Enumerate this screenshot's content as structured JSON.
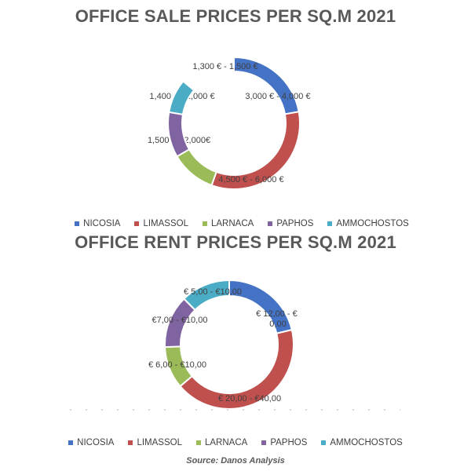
{
  "colors": {
    "NICOSIA": "#4472C4",
    "LIMASSOL": "#C0504D",
    "LARNACA": "#9BBB59",
    "PAPHOS": "#8064A2",
    "AMMOCHOSTOS": "#4BACC6"
  },
  "legend": [
    "NICOSIA",
    "LIMASSOL",
    "LARNACA",
    "PAPHOS",
    "AMMOCHOSTOS"
  ],
  "source": "Source: Danos Analysis",
  "chart_data": [
    {
      "type": "pie",
      "style": "donut",
      "title": "OFFICE SALE PRICES PER SQ.M 2021",
      "series": [
        {
          "name": "NICOSIA",
          "label": "3,000 € - 4,000 €",
          "share": 0.222
        },
        {
          "name": "LIMASSOL",
          "label": "4,500 € - 6,000 €",
          "share": 0.333
        },
        {
          "name": "LARNACA",
          "label": "1,500 € - 2,000€",
          "share": 0.111
        },
        {
          "name": "PAPHOS",
          "label": "1,400 € - 2,000 €",
          "share": 0.111
        },
        {
          "name": "AMMOCHOSTOS",
          "label": "1,300 € - 1,500 €",
          "share": 0.083
        }
      ],
      "legend_position": "bottom"
    },
    {
      "type": "pie",
      "style": "donut",
      "title": "OFFICE RENT PRICES PER SQ.M 2021",
      "series": [
        {
          "name": "NICOSIA",
          "label": "€ 12,00 - € 20,00",
          "share": 0.213
        },
        {
          "name": "LIMASSOL",
          "label": "€ 20,00 - €40,00",
          "share": 0.425
        },
        {
          "name": "LARNACA",
          "label": "€ 6,00 - €10,00",
          "share": 0.106
        },
        {
          "name": "PAPHOS",
          "label": "€7,00 - €10,00",
          "share": 0.132
        },
        {
          "name": "AMMOCHOSTOS",
          "label": "€ 5,00 - €10,00",
          "share": 0.124
        }
      ],
      "legend_position": "bottom"
    }
  ]
}
